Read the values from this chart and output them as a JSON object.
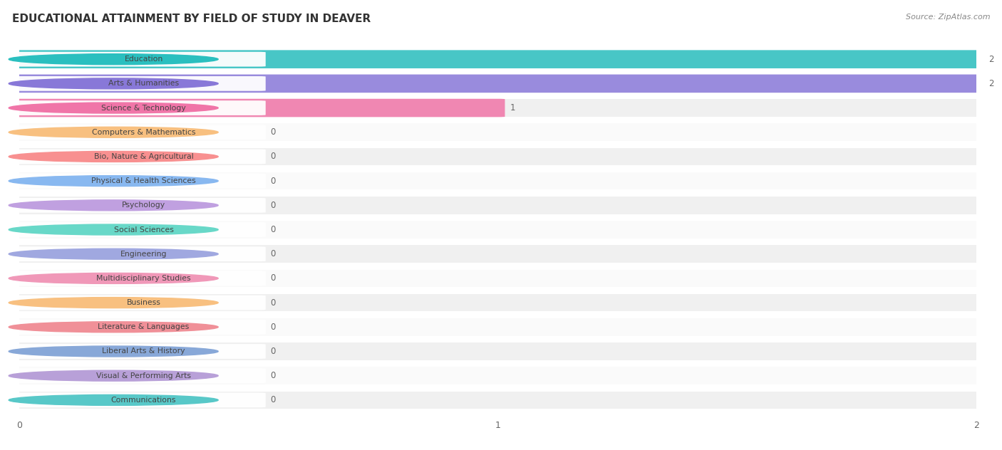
{
  "title": "EDUCATIONAL ATTAINMENT BY FIELD OF STUDY IN DEAVER",
  "source": "Source: ZipAtlas.com",
  "categories": [
    "Education",
    "Arts & Humanities",
    "Science & Technology",
    "Computers & Mathematics",
    "Bio, Nature & Agricultural",
    "Physical & Health Sciences",
    "Psychology",
    "Social Sciences",
    "Engineering",
    "Multidisciplinary Studies",
    "Business",
    "Literature & Languages",
    "Liberal Arts & History",
    "Visual & Performing Arts",
    "Communications"
  ],
  "values": [
    2,
    2,
    1,
    0,
    0,
    0,
    0,
    0,
    0,
    0,
    0,
    0,
    0,
    0,
    0
  ],
  "bar_colors": [
    "#2abfbf",
    "#8878d8",
    "#f075a8",
    "#f8c080",
    "#f89090",
    "#88b8f0",
    "#c0a0e0",
    "#68d8c8",
    "#a0a8e0",
    "#f098b8",
    "#f8c080",
    "#f09098",
    "#88a8d8",
    "#b8a0d8",
    "#58c8c8"
  ],
  "xlim": [
    0,
    2
  ],
  "background_color": "#ffffff",
  "row_bg_even": "#f0f0f0",
  "row_bg_odd": "#fafafa",
  "pill_bg": "#ffffff",
  "value_color": "#666666",
  "title_color": "#333333",
  "source_color": "#888888",
  "label_color": "#444444",
  "grid_color": "#ffffff",
  "title_fontsize": 11,
  "label_fontsize": 7.8,
  "value_fontsize": 8.5,
  "tick_fontsize": 9
}
